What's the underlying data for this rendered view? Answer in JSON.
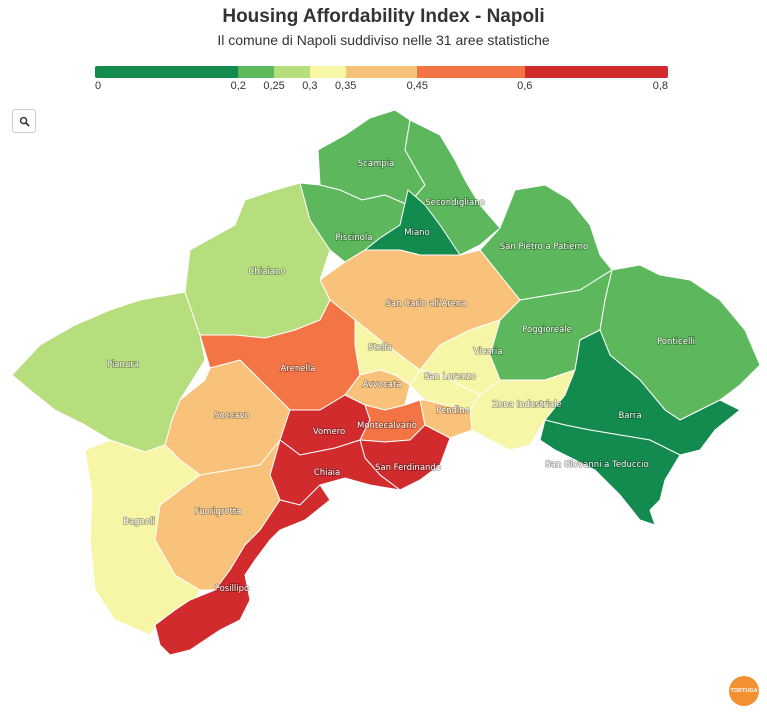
{
  "header": {
    "title": "Housing Affordability Index - Napoli",
    "subtitle": "Il comune di Napoli suddiviso nelle 31 aree statistiche"
  },
  "legend": {
    "bins": [
      {
        "from": 0,
        "to": 0.2,
        "color": "#138a4e"
      },
      {
        "from": 0.2,
        "to": 0.25,
        "color": "#5db85d"
      },
      {
        "from": 0.25,
        "to": 0.3,
        "color": "#b7de7c"
      },
      {
        "from": 0.3,
        "to": 0.35,
        "color": "#f7f5a6"
      },
      {
        "from": 0.35,
        "to": 0.45,
        "color": "#f9c27b"
      },
      {
        "from": 0.45,
        "to": 0.6,
        "color": "#f37545"
      },
      {
        "from": 0.6,
        "to": 0.8,
        "color": "#d12b2e"
      }
    ],
    "ticks": [
      "0",
      "0,2",
      "0,25",
      "0,3",
      "0,35",
      "0,45",
      "0,6",
      "0,8"
    ]
  },
  "zoom_icon": "search-icon",
  "areas": [
    {
      "name": "Scampia",
      "color": "#5db85d"
    },
    {
      "name": "Secondigliano",
      "color": "#5db85d"
    },
    {
      "name": "Piscinola",
      "color": "#5db85d"
    },
    {
      "name": "Miano",
      "color": "#138a4e"
    },
    {
      "name": "San Pietro a Patierno",
      "color": "#5db85d"
    },
    {
      "name": "Chiaiano",
      "color": "#b7de7c"
    },
    {
      "name": "San Carlo all'Arena",
      "color": "#f9c27b"
    },
    {
      "name": "Poggioreale",
      "color": "#5db85d"
    },
    {
      "name": "Ponticelli",
      "color": "#5db85d"
    },
    {
      "name": "Pianura",
      "color": "#b7de7c"
    },
    {
      "name": "Stella",
      "color": "#f7f5a6"
    },
    {
      "name": "Vicaria",
      "color": "#f7f5a6"
    },
    {
      "name": "Arenella",
      "color": "#f37545"
    },
    {
      "name": "San Lorenzo",
      "color": "#f7f5a6"
    },
    {
      "name": "Avvocata",
      "color": "#f9c27b"
    },
    {
      "name": "Soccavo",
      "color": "#f9c27b"
    },
    {
      "name": "Pendino",
      "color": "#f9c27b"
    },
    {
      "name": "Zona Industriale",
      "color": "#f7f5a6"
    },
    {
      "name": "Barra",
      "color": "#138a4e"
    },
    {
      "name": "Vomero",
      "color": "#d12b2e"
    },
    {
      "name": "Montecalvario",
      "color": "#f37545"
    },
    {
      "name": "San Ferdinando",
      "color": "#d12b2e"
    },
    {
      "name": "Chiaia",
      "color": "#d12b2e"
    },
    {
      "name": "San Giovanni a Teduccio",
      "color": "#138a4e"
    },
    {
      "name": "Bagnoli",
      "color": "#f7f5a6"
    },
    {
      "name": "Fuorigrotta",
      "color": "#f9c27b"
    },
    {
      "name": "Posillipo",
      "color": "#d12b2e"
    }
  ],
  "logo": {
    "text": "TORTUGA",
    "color": "#f39032"
  }
}
